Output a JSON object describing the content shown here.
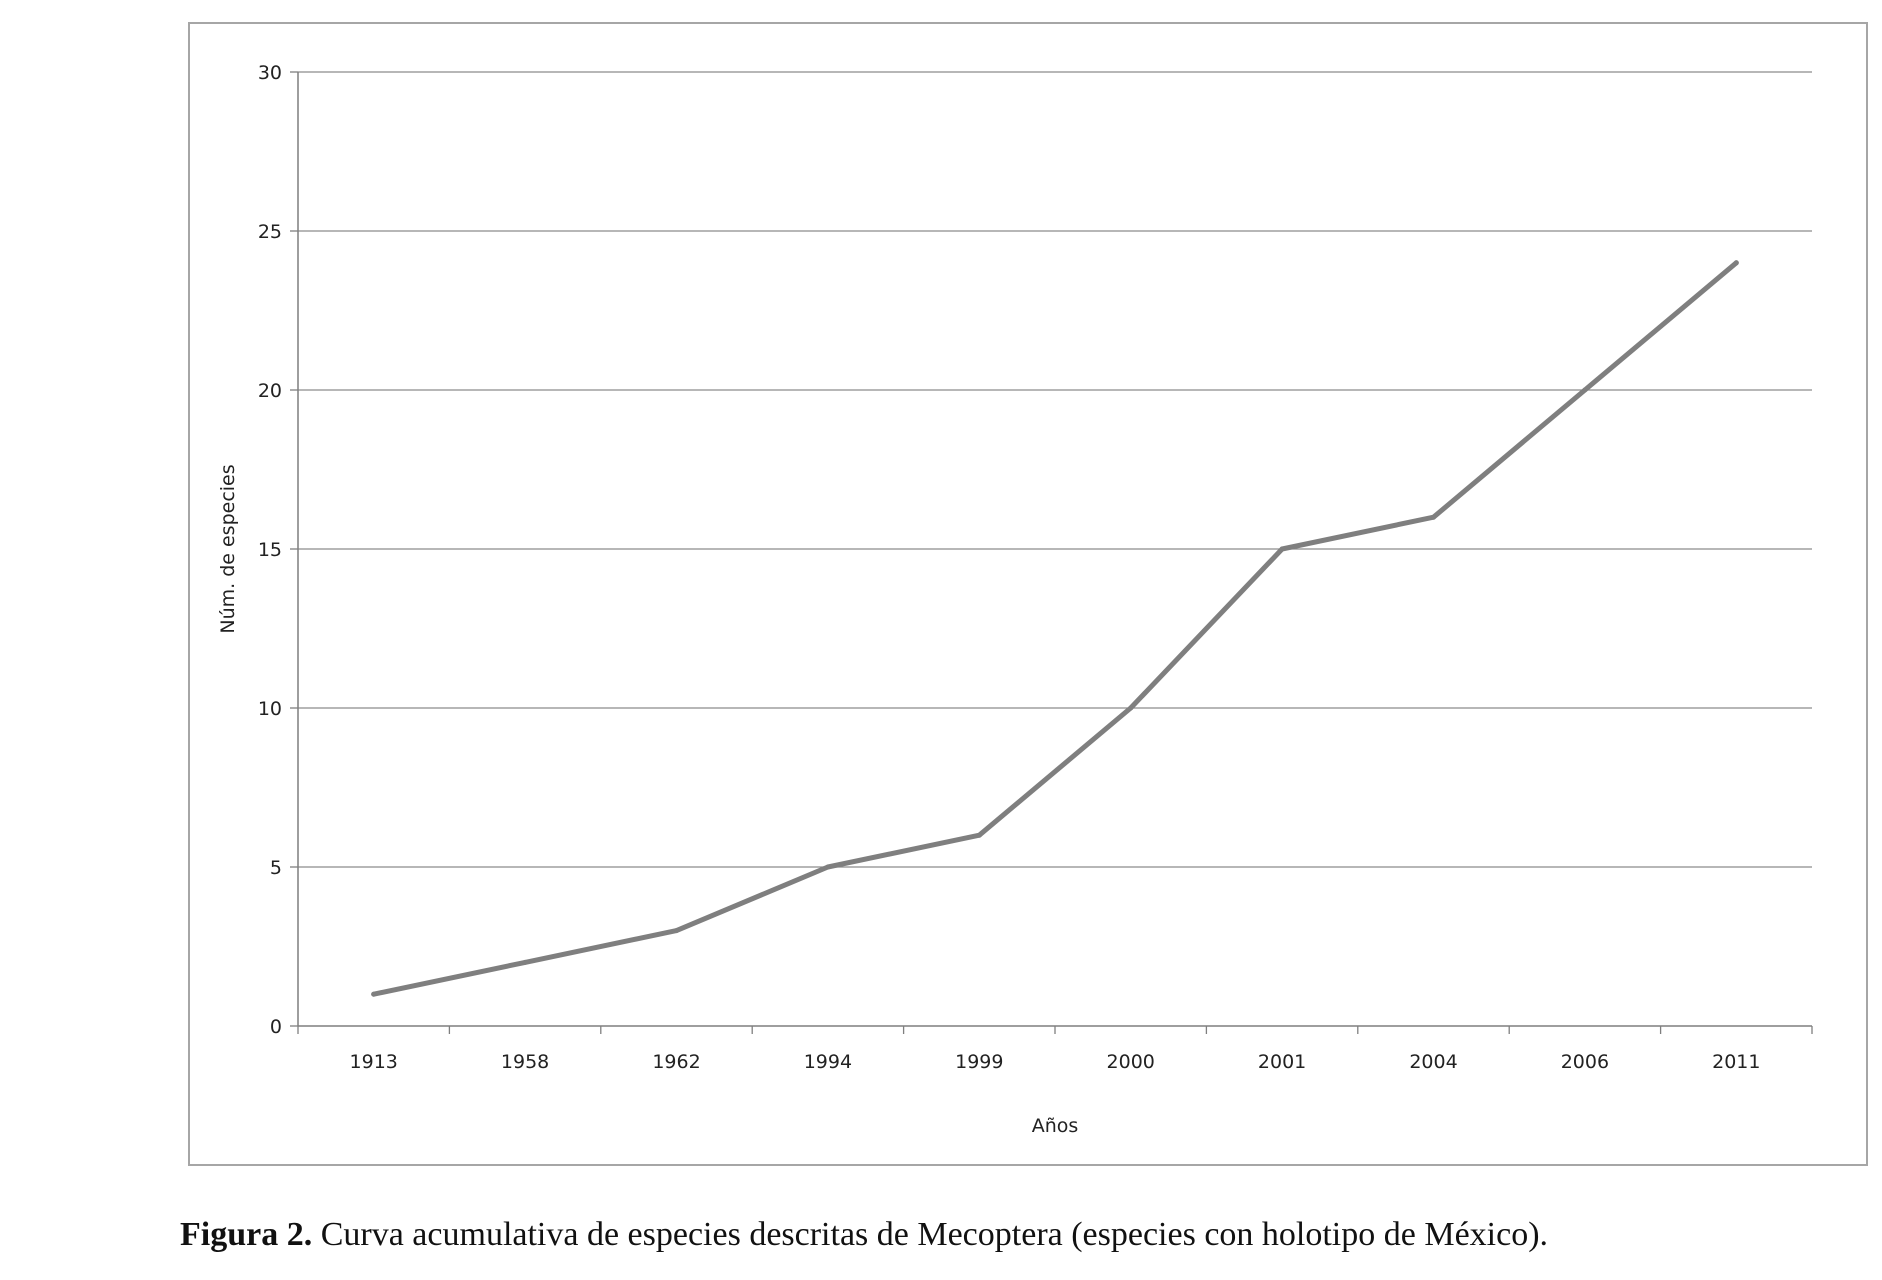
{
  "chart_data": {
    "type": "line",
    "categories": [
      "1913",
      "1958",
      "1962",
      "1994",
      "1999",
      "2000",
      "2001",
      "2004",
      "2006",
      "2011"
    ],
    "series": [
      {
        "values": [
          1,
          2,
          3,
          5,
          6,
          10,
          15,
          16,
          20,
          24
        ]
      }
    ],
    "xlabel": "Años",
    "ylabel": "Núm. de especies",
    "ylim": [
      0,
      30
    ],
    "yticks": [
      0,
      5,
      10,
      15,
      20,
      25,
      30
    ],
    "grid": "horizontal",
    "legend": "none",
    "colors": {
      "line": "#7f7f7f",
      "grid": "#8c8c8c",
      "axis": "#7f7f7f"
    }
  },
  "caption": {
    "label": "Figura 2.",
    "text": " Curva acumulativa de especies descritas de Mecoptera (especies con holotipo de México)."
  }
}
